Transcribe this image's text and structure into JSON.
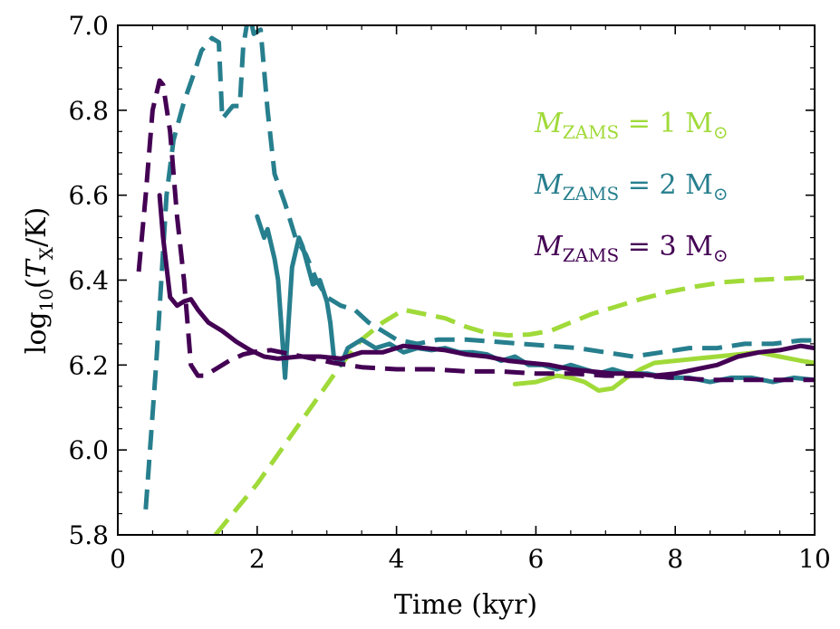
{
  "chart_data": {
    "type": "line",
    "xlabel": "Time (kyr)",
    "ylabel": {
      "prefix": "log",
      "sub": "10",
      "open": "(",
      "var": "T",
      "var_sub": "X",
      "unit": "/K)"
    },
    "xlim": [
      0,
      10
    ],
    "ylim": [
      5.8,
      7.0
    ],
    "xticks": [
      0,
      2,
      4,
      6,
      8,
      10
    ],
    "xtick_labels": [
      "0",
      "2",
      "4",
      "6",
      "8",
      "10"
    ],
    "yticks": [
      5.8,
      6.0,
      6.2,
      6.4,
      6.6,
      6.8,
      7.0
    ],
    "ytick_labels": [
      "5.8",
      "6.0",
      "6.2",
      "6.4",
      "6.6",
      "6.8",
      "7.0"
    ],
    "xminor_step": 0.5,
    "yminor_step": 0.05,
    "grid": false,
    "legend": {
      "placement": "top-right",
      "entries": [
        {
          "var": "M",
          "sub": "ZAMS",
          "rest": " = 1 M",
          "sun": "⊙",
          "color": "#a0da39"
        },
        {
          "var": "M",
          "sub": "ZAMS",
          "rest": " = 2 M",
          "sun": "⊙",
          "color": "#277f8e"
        },
        {
          "var": "M",
          "sub": "ZAMS",
          "rest": " = 3 M",
          "sun": "⊙",
          "color": "#440154"
        }
      ]
    },
    "series": [
      {
        "name": "M_ZAMS = 1 Msun dashed",
        "color": "#a0da39",
        "style": "dashed",
        "x": [
          1.4,
          1.7,
          2.0,
          2.3,
          2.6,
          2.9,
          3.2,
          3.5,
          3.8,
          4.1,
          4.4,
          4.7,
          5.0,
          5.3,
          5.6,
          5.9,
          6.2,
          6.5,
          6.8,
          7.1,
          7.5,
          7.9,
          8.3,
          8.7,
          9.1,
          9.5,
          10.0
        ],
        "y": [
          5.8,
          5.86,
          5.92,
          5.99,
          6.06,
          6.13,
          6.2,
          6.26,
          6.3,
          6.33,
          6.32,
          6.31,
          6.29,
          6.275,
          6.27,
          6.272,
          6.28,
          6.3,
          6.32,
          6.335,
          6.355,
          6.372,
          6.385,
          6.395,
          6.4,
          6.403,
          6.407
        ]
      },
      {
        "name": "M_ZAMS = 1 Msun solid",
        "color": "#a0da39",
        "style": "solid",
        "x": [
          5.7,
          6.0,
          6.3,
          6.5,
          6.7,
          6.9,
          7.1,
          7.3,
          7.5,
          7.7,
          8.0,
          8.3,
          8.6,
          8.9,
          9.2,
          9.5,
          9.8,
          10.0
        ],
        "y": [
          6.155,
          6.16,
          6.175,
          6.17,
          6.16,
          6.14,
          6.145,
          6.17,
          6.19,
          6.205,
          6.21,
          6.215,
          6.22,
          6.225,
          6.23,
          6.22,
          6.21,
          6.205
        ]
      },
      {
        "name": "M_ZAMS = 2 Msun dashed",
        "color": "#277f8e",
        "style": "dashed",
        "x": [
          0.4,
          0.55,
          0.7,
          0.8,
          0.95,
          1.1,
          1.2,
          1.35,
          1.45,
          1.5,
          1.65,
          1.75,
          1.8,
          1.85,
          1.9,
          1.95,
          2.05,
          2.15,
          2.25,
          2.4,
          2.55,
          2.7,
          2.85,
          3.0,
          3.2,
          3.4,
          3.6,
          3.8,
          4.0,
          4.3,
          4.6,
          5.0,
          5.4,
          5.8,
          6.2,
          6.6,
          7.0,
          7.4,
          7.8,
          8.2,
          8.6,
          9.0,
          9.4,
          9.8,
          10.0
        ],
        "y": [
          5.86,
          6.2,
          6.6,
          6.73,
          6.82,
          6.89,
          6.94,
          6.97,
          6.96,
          6.78,
          6.81,
          6.81,
          6.95,
          7.0,
          7.02,
          6.98,
          6.99,
          6.8,
          6.65,
          6.58,
          6.5,
          6.46,
          6.4,
          6.36,
          6.34,
          6.33,
          6.3,
          6.28,
          6.26,
          6.25,
          6.26,
          6.26,
          6.255,
          6.25,
          6.245,
          6.24,
          6.23,
          6.22,
          6.23,
          6.24,
          6.24,
          6.25,
          6.25,
          6.258,
          6.258
        ]
      },
      {
        "name": "M_ZAMS = 2 Msun solid",
        "color": "#277f8e",
        "style": "solid",
        "x": [
          2.0,
          2.1,
          2.15,
          2.25,
          2.3,
          2.4,
          2.45,
          2.5,
          2.6,
          2.65,
          2.7,
          2.8,
          2.9,
          3.0,
          3.05,
          3.1,
          3.2,
          3.3,
          3.5,
          3.7,
          3.9,
          4.1,
          4.3,
          4.5,
          4.7,
          4.9,
          5.1,
          5.3,
          5.5,
          5.7,
          5.9,
          6.1,
          6.3,
          6.5,
          6.7,
          6.9,
          7.1,
          7.3,
          7.6,
          7.9,
          8.2,
          8.5,
          8.8,
          9.1,
          9.4,
          9.7,
          10.0
        ],
        "y": [
          6.55,
          6.5,
          6.52,
          6.45,
          6.4,
          6.17,
          6.3,
          6.43,
          6.5,
          6.48,
          6.45,
          6.39,
          6.4,
          6.35,
          6.3,
          6.22,
          6.2,
          6.24,
          6.26,
          6.24,
          6.25,
          6.23,
          6.24,
          6.235,
          6.24,
          6.23,
          6.23,
          6.225,
          6.21,
          6.22,
          6.2,
          6.2,
          6.19,
          6.2,
          6.19,
          6.18,
          6.19,
          6.18,
          6.18,
          6.17,
          6.17,
          6.16,
          6.17,
          6.17,
          6.16,
          6.17,
          6.165
        ]
      },
      {
        "name": "M_ZAMS = 3 Msun dashed",
        "color": "#440154",
        "style": "dashed",
        "x": [
          0.3,
          0.4,
          0.5,
          0.6,
          0.65,
          0.75,
          0.85,
          0.95,
          1.05,
          1.15,
          1.25,
          1.4,
          1.6,
          1.8,
          2.0,
          2.2,
          2.5,
          2.8,
          3.1,
          3.5,
          4.0,
          4.5,
          5.0,
          5.5,
          6.0,
          6.5,
          7.0,
          7.5,
          8.0,
          8.5,
          9.0,
          9.5,
          10.0
        ],
        "y": [
          6.42,
          6.6,
          6.8,
          6.87,
          6.86,
          6.75,
          6.55,
          6.4,
          6.2,
          6.175,
          6.175,
          6.19,
          6.21,
          6.225,
          6.232,
          6.235,
          6.225,
          6.215,
          6.205,
          6.195,
          6.19,
          6.19,
          6.185,
          6.185,
          6.18,
          6.18,
          6.175,
          6.175,
          6.17,
          6.165,
          6.165,
          6.165,
          6.165
        ]
      },
      {
        "name": "M_ZAMS = 3 Msun solid",
        "color": "#440154",
        "style": "solid",
        "x": [
          0.6,
          0.65,
          0.75,
          0.85,
          0.95,
          1.05,
          1.15,
          1.3,
          1.5,
          1.7,
          1.9,
          2.1,
          2.3,
          2.6,
          2.9,
          3.2,
          3.5,
          3.8,
          4.1,
          4.4,
          4.7,
          5.0,
          5.3,
          5.6,
          5.9,
          6.2,
          6.5,
          6.8,
          7.1,
          7.4,
          7.7,
          8.0,
          8.3,
          8.6,
          8.9,
          9.2,
          9.5,
          9.8,
          10.0
        ],
        "y": [
          6.6,
          6.5,
          6.36,
          6.34,
          6.35,
          6.355,
          6.33,
          6.3,
          6.28,
          6.255,
          6.235,
          6.22,
          6.215,
          6.22,
          6.22,
          6.215,
          6.23,
          6.23,
          6.245,
          6.24,
          6.235,
          6.225,
          6.22,
          6.21,
          6.205,
          6.2,
          6.19,
          6.185,
          6.18,
          6.18,
          6.175,
          6.18,
          6.19,
          6.2,
          6.22,
          6.23,
          6.235,
          6.245,
          6.24
        ]
      }
    ]
  }
}
